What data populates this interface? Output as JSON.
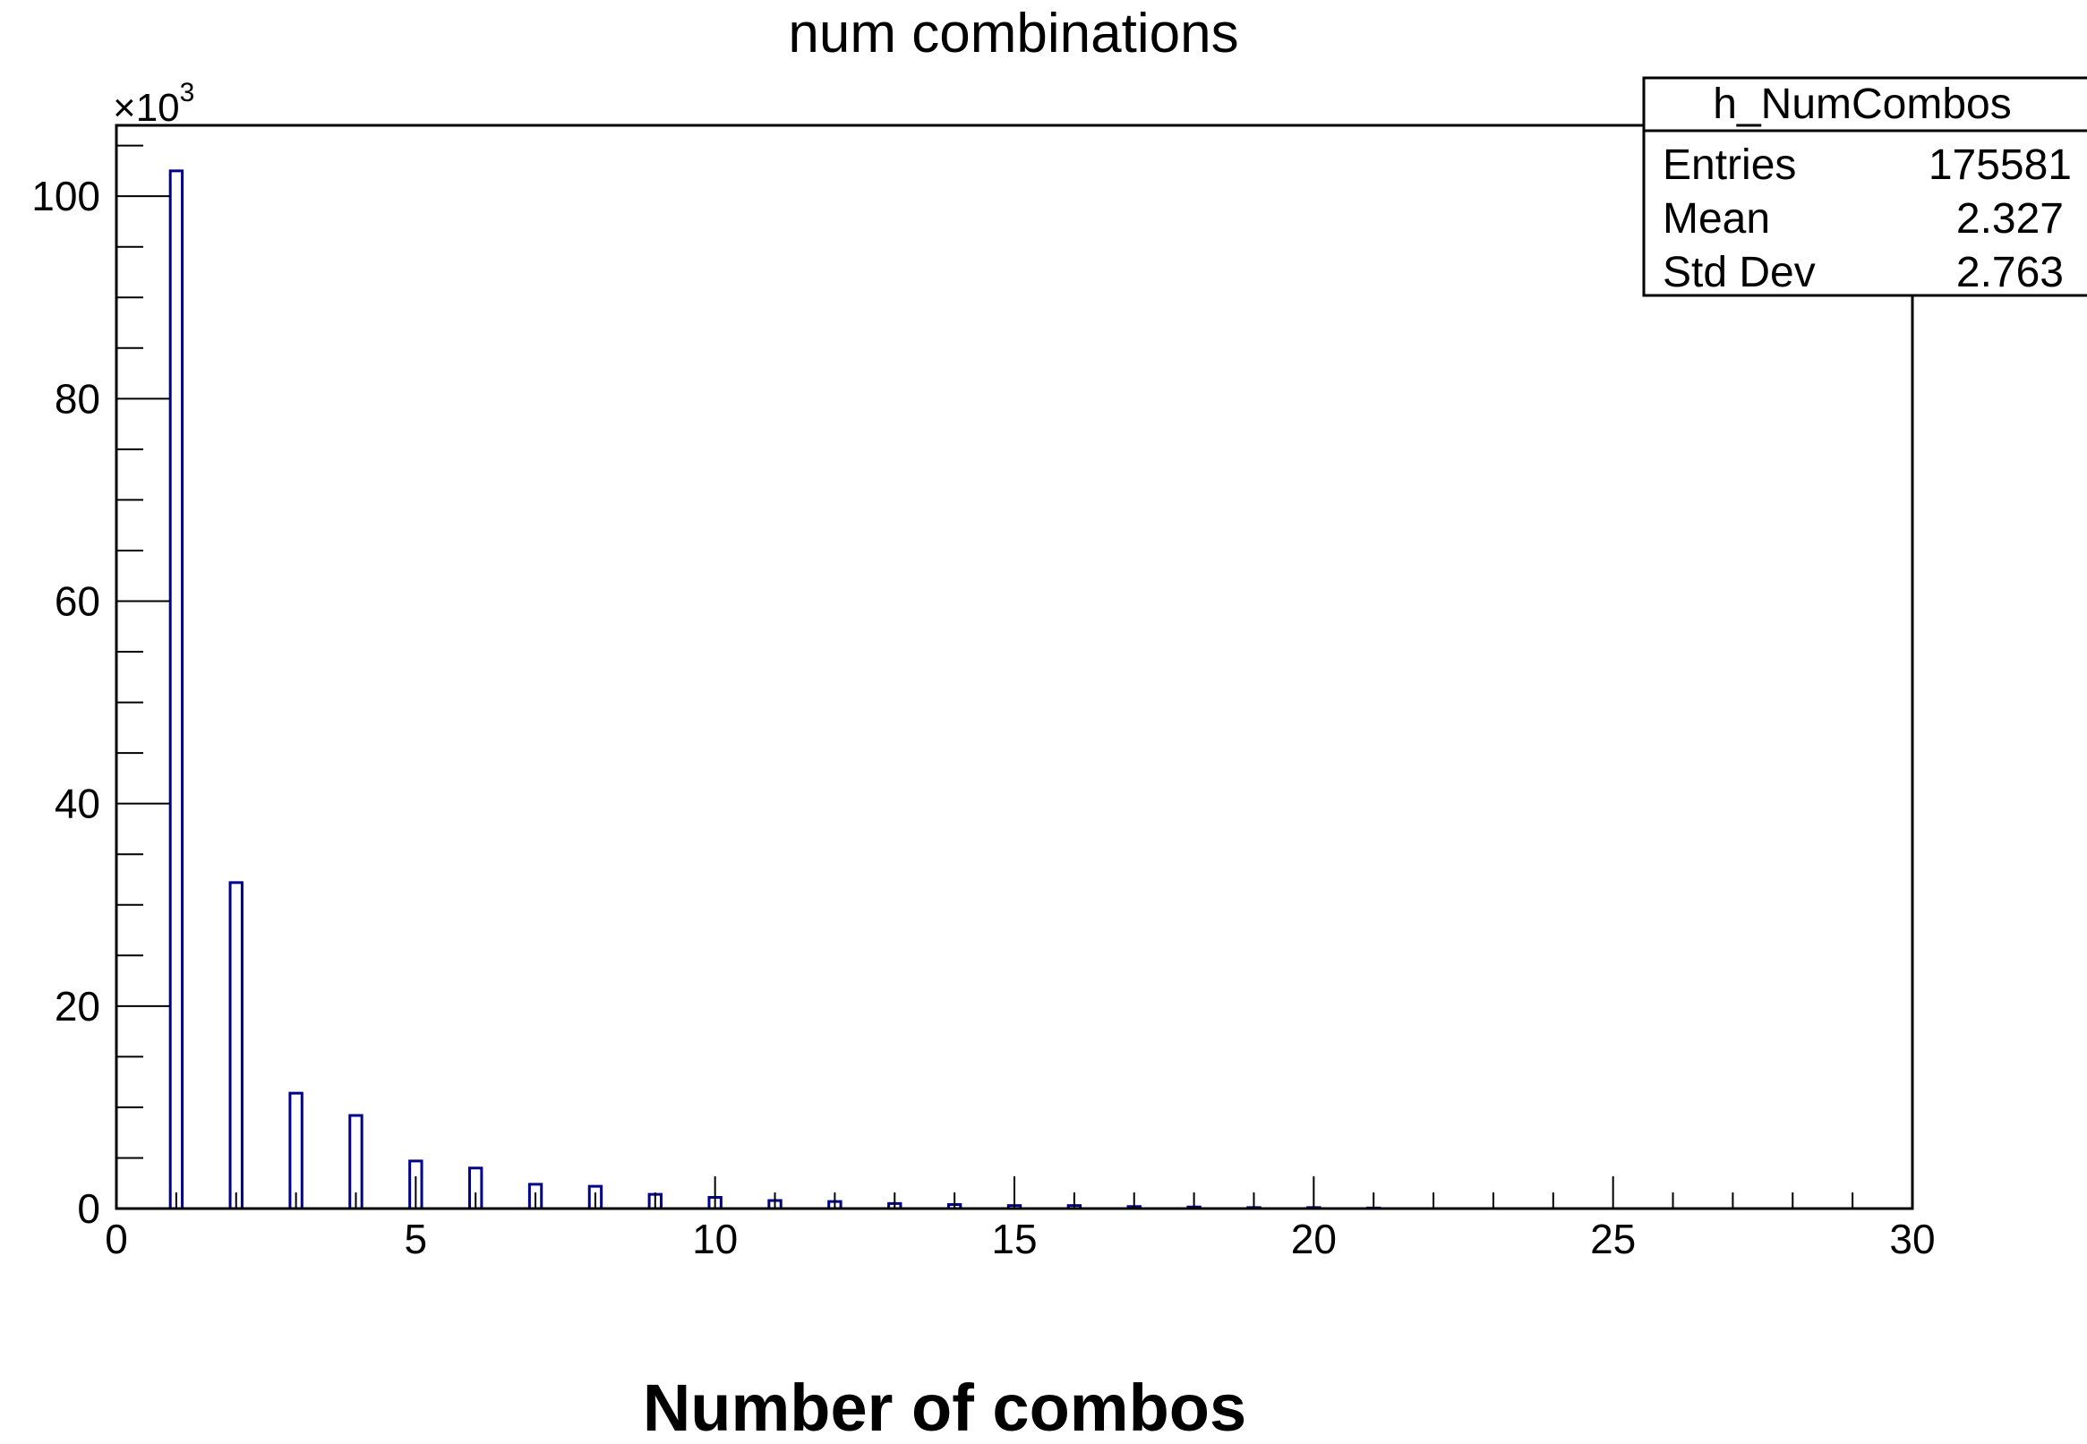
{
  "chart_data": {
    "type": "bar",
    "title": "num combinations",
    "xlabel": "Number of combos",
    "ylabel": "",
    "y_multiplier_label": "×10",
    "y_multiplier_exponent": "3",
    "xlim": [
      0,
      30
    ],
    "ylim": [
      0,
      107
    ],
    "x_ticks": [
      0,
      5,
      10,
      15,
      20,
      25,
      30
    ],
    "y_ticks": [
      0,
      20,
      40,
      60,
      80,
      100
    ],
    "y_minor_step": 5,
    "x_minor_step": 1,
    "bin_width": 0.2,
    "grid": false,
    "line_color": "#00008b",
    "series": [
      {
        "bins": [
          {
            "x": 0.9,
            "value": 102.5
          },
          {
            "x": 1.9,
            "value": 32.2
          },
          {
            "x": 2.9,
            "value": 11.4
          },
          {
            "x": 3.9,
            "value": 9.2
          },
          {
            "x": 4.9,
            "value": 4.7
          },
          {
            "x": 5.9,
            "value": 4.0
          },
          {
            "x": 6.9,
            "value": 2.4
          },
          {
            "x": 7.9,
            "value": 2.2
          },
          {
            "x": 8.9,
            "value": 1.4
          },
          {
            "x": 9.9,
            "value": 1.1
          },
          {
            "x": 10.9,
            "value": 0.8
          },
          {
            "x": 11.9,
            "value": 0.7
          },
          {
            "x": 12.9,
            "value": 0.5
          },
          {
            "x": 13.9,
            "value": 0.4
          },
          {
            "x": 14.9,
            "value": 0.3
          },
          {
            "x": 15.9,
            "value": 0.3
          },
          {
            "x": 16.9,
            "value": 0.2
          },
          {
            "x": 17.9,
            "value": 0.15
          },
          {
            "x": 18.9,
            "value": 0.1
          },
          {
            "x": 19.9,
            "value": 0.1
          },
          {
            "x": 20.9,
            "value": 0.05
          }
        ]
      }
    ],
    "stats_box": {
      "name": "h_NumCombos",
      "position": "top-right",
      "rows": [
        {
          "label": "Entries",
          "value": "175581"
        },
        {
          "label": "Mean",
          "value": "2.327"
        },
        {
          "label": "Std Dev",
          "value": "2.763"
        }
      ]
    }
  }
}
